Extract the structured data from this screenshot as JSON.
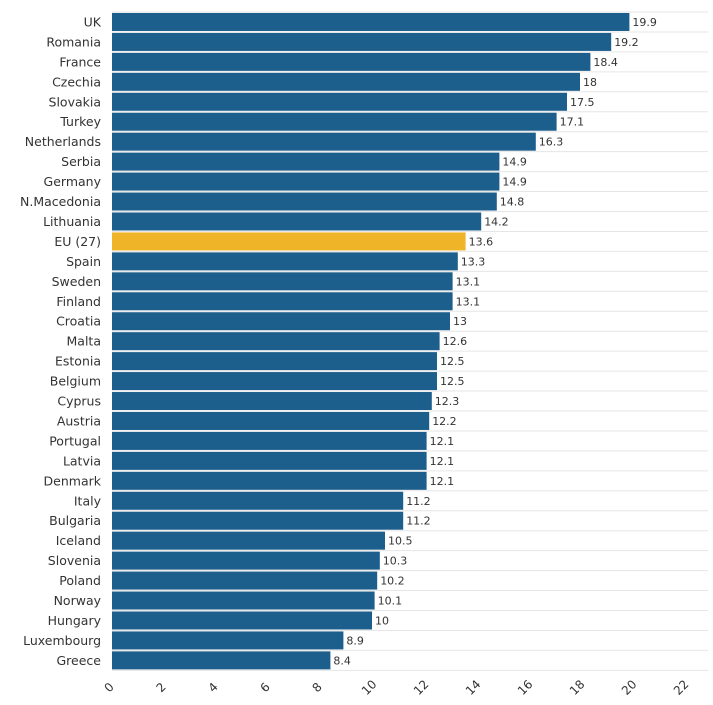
{
  "chart_data": {
    "type": "bar",
    "orientation": "horizontal",
    "categories": [
      "UK",
      "Romania",
      "France",
      "Czechia",
      "Slovakia",
      "Turkey",
      "Netherlands",
      "Serbia",
      "Germany",
      "N.Macedonia",
      "Lithuania",
      "EU (27)",
      "Spain",
      "Sweden",
      "Finland",
      "Croatia",
      "Malta",
      "Estonia",
      "Belgium",
      "Cyprus",
      "Austria",
      "Portugal",
      "Latvia",
      "Denmark",
      "Italy",
      "Bulgaria",
      "Iceland",
      "Slovenia",
      "Poland",
      "Norway",
      "Hungary",
      "Luxembourg",
      "Greece"
    ],
    "values": [
      19.9,
      19.2,
      18.4,
      18,
      17.5,
      17.1,
      16.3,
      14.9,
      14.9,
      14.8,
      14.2,
      13.6,
      13.3,
      13.1,
      13.1,
      13,
      12.6,
      12.5,
      12.5,
      12.3,
      12.2,
      12.1,
      12.1,
      12.1,
      11.2,
      11.2,
      10.5,
      10.3,
      10.2,
      10.1,
      10,
      8.9,
      8.4
    ],
    "value_labels": [
      "19.9",
      "19.2",
      "18.4",
      "18",
      "17.5",
      "17.1",
      "16.3",
      "14.9",
      "14.9",
      "14.8",
      "14.2",
      "13.6",
      "13.3",
      "13.1",
      "13.1",
      "13",
      "12.6",
      "12.5",
      "12.5",
      "12.3",
      "12.2",
      "12.1",
      "12.1",
      "12.1",
      "11.2",
      "11.2",
      "10.5",
      "10.3",
      "10.2",
      "10.1",
      "10",
      "8.9",
      "8.4"
    ],
    "highlight": "EU (27)",
    "xlim": [
      0,
      22
    ],
    "xticks": [
      "0",
      "2",
      "4",
      "6",
      "8",
      "10",
      "12",
      "14",
      "16",
      "18",
      "20",
      "22"
    ],
    "grid": true,
    "colors": {
      "bar": "#1c5e8c",
      "highlight": "#f0b429",
      "grid": "#e6e6e6",
      "text": "#333333"
    }
  }
}
